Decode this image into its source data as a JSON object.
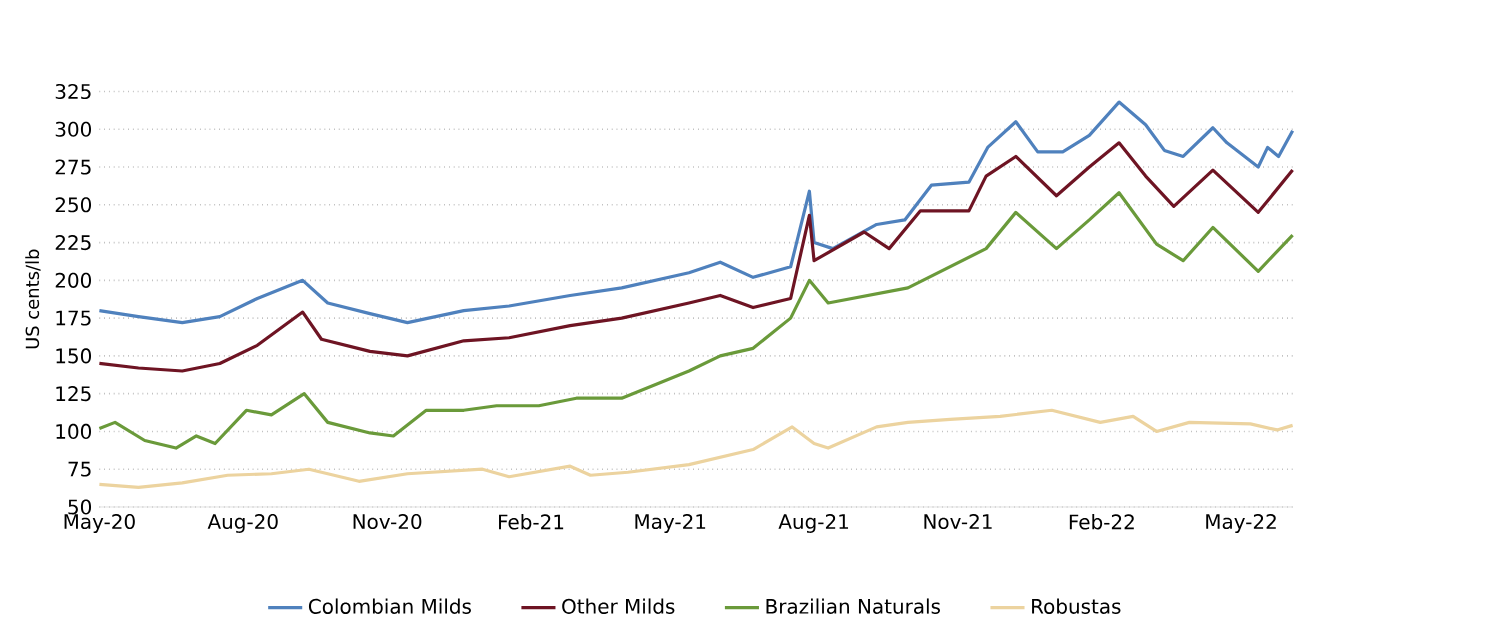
{
  "chart_data": {
    "type": "line",
    "ylabel": "US cents/lb",
    "legend": "bottom",
    "grid": "y",
    "marker": "none",
    "line_style": "solid",
    "xlim": [
      "2020-05-01",
      "2022-06-03"
    ],
    "ylim": [
      50,
      325
    ],
    "yticks": [
      50,
      75,
      100,
      125,
      150,
      175,
      200,
      225,
      250,
      275,
      300,
      325
    ],
    "xticks": [
      {
        "value": "2020-05-01",
        "label": "May-20"
      },
      {
        "value": "2020-08-01",
        "label": "Aug-20"
      },
      {
        "value": "2020-11-01",
        "label": "Nov-20"
      },
      {
        "value": "2021-02-01",
        "label": "Feb-21"
      },
      {
        "value": "2021-05-01",
        "label": "May-21"
      },
      {
        "value": "2021-08-01",
        "label": "Aug-21"
      },
      {
        "value": "2021-11-01",
        "label": "Nov-21"
      },
      {
        "value": "2022-02-01",
        "label": "Feb-22"
      },
      {
        "value": "2022-05-01",
        "label": "May-22"
      }
    ],
    "series": [
      {
        "name": "Colombian Milds",
        "color": "#4f81bd",
        "x": [
          "2020-05-01",
          "2020-05-26",
          "2020-06-23",
          "2020-07-17",
          "2020-08-10",
          "2020-09-08",
          "2020-09-24",
          "2020-10-21",
          "2020-11-14",
          "2020-12-20",
          "2021-01-18",
          "2021-02-26",
          "2021-03-31",
          "2021-05-13",
          "2021-06-02",
          "2021-06-23",
          "2021-07-17",
          "2021-07-29",
          "2021-08-01",
          "2021-08-13",
          "2021-09-10",
          "2021-09-28",
          "2021-10-15",
          "2021-11-08",
          "2021-11-20",
          "2021-12-08",
          "2021-12-22",
          "2022-01-07",
          "2022-01-24",
          "2022-02-12",
          "2022-03-01",
          "2022-03-13",
          "2022-03-25",
          "2022-04-13",
          "2022-04-22",
          "2022-05-12",
          "2022-05-18",
          "2022-05-25",
          "2022-06-03"
        ],
        "values": [
          180,
          176,
          172,
          176,
          188,
          200,
          185,
          178,
          172,
          180,
          183,
          190,
          195,
          205,
          212,
          202,
          209,
          259,
          225,
          221,
          237,
          240,
          263,
          265,
          288,
          305,
          285,
          285,
          296,
          318,
          303,
          286,
          282,
          301,
          291,
          275,
          288,
          282,
          299
        ]
      },
      {
        "name": "Other Milds",
        "color": "#6e1423",
        "x": [
          "2020-05-01",
          "2020-05-26",
          "2020-06-23",
          "2020-07-17",
          "2020-08-10",
          "2020-09-08",
          "2020-09-20",
          "2020-10-21",
          "2020-11-14",
          "2020-12-20",
          "2021-01-18",
          "2021-02-26",
          "2021-03-31",
          "2021-05-13",
          "2021-06-02",
          "2021-06-23",
          "2021-07-17",
          "2021-07-29",
          "2021-08-01",
          "2021-09-02",
          "2021-09-18",
          "2021-10-08",
          "2021-11-08",
          "2021-11-19",
          "2021-12-08",
          "2022-01-03",
          "2022-01-24",
          "2022-02-12",
          "2022-03-01",
          "2022-03-19",
          "2022-04-13",
          "2022-05-12",
          "2022-06-03"
        ],
        "values": [
          145,
          142,
          140,
          145,
          157,
          179,
          161,
          153,
          150,
          160,
          162,
          170,
          175,
          185,
          190,
          182,
          188,
          243,
          213,
          232,
          221,
          246,
          246,
          269,
          282,
          256,
          275,
          291,
          269,
          249,
          273,
          245,
          273
        ]
      },
      {
        "name": "Brazilian Naturals",
        "color": "#6a9a3a",
        "x": [
          "2020-05-01",
          "2020-05-11",
          "2020-05-30",
          "2020-06-19",
          "2020-07-02",
          "2020-07-14",
          "2020-08-03",
          "2020-08-19",
          "2020-09-09",
          "2020-09-24",
          "2020-10-21",
          "2020-11-05",
          "2020-11-26",
          "2020-12-20",
          "2021-01-10",
          "2021-02-06",
          "2021-03-02",
          "2021-03-31",
          "2021-05-13",
          "2021-06-02",
          "2021-06-23",
          "2021-07-17",
          "2021-07-29",
          "2021-08-10",
          "2021-09-30",
          "2021-11-19",
          "2021-12-08",
          "2022-01-03",
          "2022-01-24",
          "2022-02-12",
          "2022-03-08",
          "2022-03-25",
          "2022-04-13",
          "2022-05-12",
          "2022-06-03"
        ],
        "values": [
          102,
          106,
          94,
          89,
          97,
          92,
          114,
          111,
          125,
          106,
          99,
          97,
          114,
          114,
          117,
          117,
          122,
          122,
          140,
          150,
          155,
          175,
          200,
          185,
          195,
          221,
          245,
          221,
          240,
          258,
          224,
          213,
          235,
          206,
          230
        ]
      },
      {
        "name": "Robustas",
        "color": "#ecd39f",
        "x": [
          "2020-05-01",
          "2020-05-26",
          "2020-06-23",
          "2020-07-22",
          "2020-08-19",
          "2020-09-12",
          "2020-10-14",
          "2020-11-14",
          "2021-01-01",
          "2021-01-18",
          "2021-02-26",
          "2021-03-11",
          "2021-04-04",
          "2021-05-13",
          "2021-06-23",
          "2021-07-18",
          "2021-08-01",
          "2021-08-10",
          "2021-09-10",
          "2021-09-30",
          "2021-10-27",
          "2021-11-28",
          "2021-12-31",
          "2022-01-31",
          "2022-02-21",
          "2022-03-08",
          "2022-03-29",
          "2022-05-07",
          "2022-05-24",
          "2022-06-03"
        ],
        "values": [
          65,
          63,
          66,
          71,
          72,
          75,
          67,
          72,
          75,
          70,
          77,
          71,
          73,
          78,
          88,
          103,
          92,
          89,
          103,
          106,
          108,
          110,
          114,
          106,
          110,
          100,
          106,
          105,
          101,
          104
        ]
      }
    ]
  }
}
